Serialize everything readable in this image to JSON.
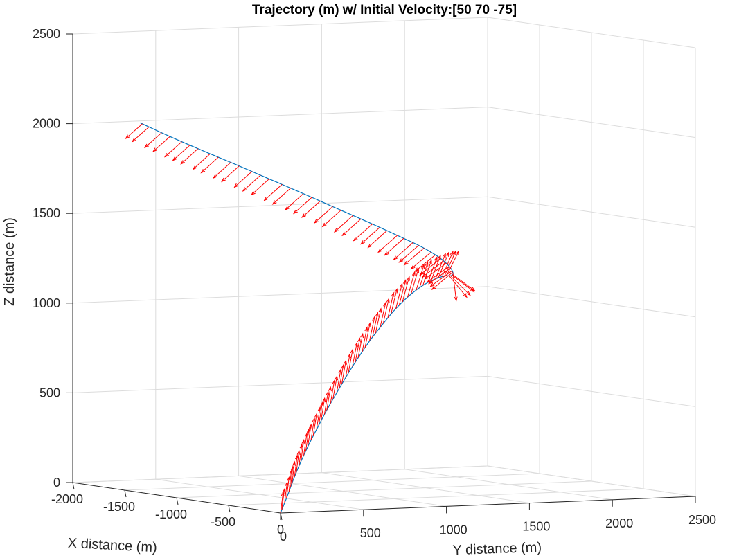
{
  "chart_data": {
    "type": "line",
    "subtype": "3d-quiver",
    "title": "Trajectory (m) w/ Initial Velocity:[50  70 -75]",
    "xlabel": "X distance (m)",
    "ylabel": "Y distance (m)",
    "zlabel": "Z distance (m)",
    "xlim": [
      -2000,
      0
    ],
    "ylim": [
      0,
      2500
    ],
    "zlim": [
      0,
      2500
    ],
    "x_ticks": [
      "-2000",
      "-1500",
      "-1000",
      "-500",
      "0"
    ],
    "y_ticks": [
      "0",
      "500",
      "1000",
      "1500",
      "2000",
      "2500"
    ],
    "z_ticks": [
      "0",
      "500",
      "1000",
      "1500",
      "2000",
      "2500"
    ],
    "grid": true,
    "colors": {
      "trajectory": "#0072bd",
      "vectors": "#ff0000"
    },
    "series": [
      {
        "type": "line",
        "points": [
          {
            "x": 0,
            "y": 0,
            "z": 0
          },
          {
            "x": -30,
            "y": 60,
            "z": 90
          },
          {
            "x": -65,
            "y": 120,
            "z": 180
          },
          {
            "x": -100,
            "y": 185,
            "z": 270
          },
          {
            "x": -135,
            "y": 255,
            "z": 360
          },
          {
            "x": -170,
            "y": 330,
            "z": 450
          },
          {
            "x": -210,
            "y": 410,
            "z": 540
          },
          {
            "x": -250,
            "y": 495,
            "z": 630
          },
          {
            "x": -295,
            "y": 585,
            "z": 720
          },
          {
            "x": -340,
            "y": 680,
            "z": 810
          },
          {
            "x": -390,
            "y": 780,
            "z": 895
          },
          {
            "x": -440,
            "y": 885,
            "z": 975
          },
          {
            "x": -495,
            "y": 995,
            "z": 1050
          },
          {
            "x": -550,
            "y": 1110,
            "z": 1115
          },
          {
            "x": -610,
            "y": 1230,
            "z": 1165
          },
          {
            "x": -670,
            "y": 1345,
            "z": 1195
          },
          {
            "x": -730,
            "y": 1445,
            "z": 1205
          },
          {
            "x": -785,
            "y": 1520,
            "z": 1200
          },
          {
            "x": -840,
            "y": 1565,
            "z": 1210
          },
          {
            "x": -900,
            "y": 1580,
            "z": 1240
          },
          {
            "x": -965,
            "y": 1560,
            "z": 1285
          },
          {
            "x": -1040,
            "y": 1500,
            "z": 1340
          },
          {
            "x": -1120,
            "y": 1405,
            "z": 1400
          },
          {
            "x": -1205,
            "y": 1285,
            "z": 1470
          },
          {
            "x": -1295,
            "y": 1150,
            "z": 1545
          },
          {
            "x": -1385,
            "y": 1005,
            "z": 1625
          },
          {
            "x": -1475,
            "y": 855,
            "z": 1705
          },
          {
            "x": -1565,
            "y": 705,
            "z": 1785
          },
          {
            "x": -1650,
            "y": 560,
            "z": 1860
          },
          {
            "x": -1735,
            "y": 420,
            "z": 1935
          },
          {
            "x": -1815,
            "y": 290,
            "z": 2010
          }
        ]
      },
      {
        "type": "quiver",
        "name": "",
        "note": "velocity vectors along trajectory",
        "count": 100
      }
    ]
  }
}
